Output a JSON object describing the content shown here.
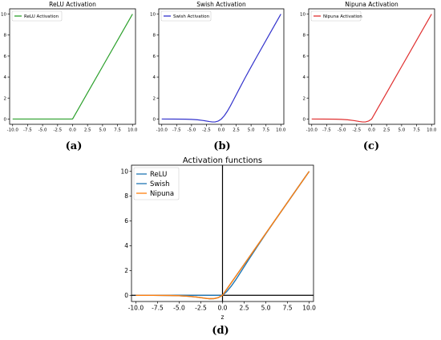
{
  "captions": [
    "(a)",
    "(b)",
    "(c)",
    "(d)"
  ],
  "colors": {
    "relu": "#2ca02c",
    "swish": "#3333cc",
    "nipuna": "#e03030",
    "relu_d": "#1f77b4",
    "swish_d": "#1f77b4",
    "nipuna_d": "#ff7f0e",
    "axis_line": "#000000"
  },
  "chart_data": [
    {
      "type": "line",
      "title": "ReLU Activation",
      "xlim": [
        -10.5,
        10.5
      ],
      "ylim": [
        -0.5,
        10.5
      ],
      "x_ticks": [
        -10.0,
        -7.5,
        -5.0,
        -2.5,
        0.0,
        2.5,
        5.0,
        7.5,
        10.0
      ],
      "x_tick_labels": [
        "-10.0",
        "-7.5",
        "-5.0",
        "-2.5",
        "0.0",
        "2.5",
        "5.0",
        "7.5",
        "10.0"
      ],
      "y_ticks": [
        0,
        2,
        4,
        6,
        8,
        10
      ],
      "y_tick_labels": [
        "0",
        "2",
        "4",
        "6",
        "8",
        "10"
      ],
      "legend_position": "upper-left",
      "grid": false,
      "series": [
        {
          "name": "ReLU Activation",
          "color_key": "relu",
          "x": [
            -10,
            -5,
            0,
            2.5,
            5,
            7.5,
            10
          ],
          "y": [
            0,
            0,
            0,
            2.5,
            5,
            7.5,
            10
          ]
        }
      ]
    },
    {
      "type": "line",
      "title": "Swish Activation",
      "xlim": [
        -10.5,
        10.5
      ],
      "ylim": [
        -0.5,
        10.5
      ],
      "x_ticks": [
        -10.0,
        -7.5,
        -5.0,
        -2.5,
        0.0,
        2.5,
        5.0,
        7.5,
        10.0
      ],
      "x_tick_labels": [
        "-10.0",
        "-7.5",
        "-5.0",
        "-2.5",
        "0.0",
        "2.5",
        "5.0",
        "7.5",
        "10.0"
      ],
      "y_ticks": [
        0,
        2,
        4,
        6,
        8,
        10
      ],
      "y_tick_labels": [
        "0",
        "2",
        "4",
        "6",
        "8",
        "10"
      ],
      "legend_position": "upper-left",
      "grid": false,
      "series": [
        {
          "name": "Swish Activation",
          "color_key": "swish",
          "x": [
            -10,
            -8,
            -6,
            -5,
            -4,
            -3,
            -2,
            -1.5,
            -1,
            -0.5,
            0,
            0.5,
            1,
            1.5,
            2,
            3,
            4,
            5,
            6,
            8,
            10
          ],
          "y": [
            0.0,
            -0.003,
            -0.015,
            -0.033,
            -0.072,
            -0.142,
            -0.238,
            -0.274,
            -0.269,
            -0.189,
            0.0,
            0.311,
            0.731,
            1.226,
            1.762,
            2.858,
            3.928,
            4.967,
            5.985,
            7.997,
            10.0
          ]
        }
      ]
    },
    {
      "type": "line",
      "title": "Nipuna Activation",
      "xlim": [
        -10.5,
        10.5
      ],
      "ylim": [
        -0.5,
        10.5
      ],
      "x_ticks": [
        -10.0,
        -7.5,
        -5.0,
        -2.5,
        0.0,
        2.5,
        5.0,
        7.5,
        10.0
      ],
      "x_tick_labels": [
        "-10.0",
        "-7.5",
        "-5.0",
        "-2.5",
        "0.0",
        "2.5",
        "5.0",
        "7.5",
        "10.0"
      ],
      "y_ticks": [
        0,
        2,
        4,
        6,
        8,
        10
      ],
      "y_tick_labels": [
        "0",
        "2",
        "4",
        "6",
        "8",
        "10"
      ],
      "legend_position": "upper-left",
      "grid": false,
      "series": [
        {
          "name": "Nipuna Activation",
          "color_key": "nipuna",
          "x": [
            -10,
            -8,
            -6,
            -5,
            -4,
            -3,
            -2,
            -1.5,
            -1,
            -0.5,
            0,
            0.5,
            1,
            2,
            3,
            4,
            5,
            6,
            8,
            10
          ],
          "y": [
            0.0,
            -0.003,
            -0.015,
            -0.033,
            -0.072,
            -0.142,
            -0.238,
            -0.274,
            -0.269,
            -0.189,
            0.0,
            0.5,
            1,
            2,
            3,
            4,
            5,
            6,
            8,
            10
          ]
        }
      ]
    },
    {
      "type": "line",
      "title": "Activation functions",
      "xlabel": "z",
      "xlim": [
        -10.5,
        10.5
      ],
      "ylim": [
        -0.5,
        10.5
      ],
      "x_ticks": [
        -10.0,
        -7.5,
        -5.0,
        -2.5,
        0.0,
        2.5,
        5.0,
        7.5,
        10.0
      ],
      "x_tick_labels": [
        "-10.0",
        "-7.5",
        "-5.0",
        "-2.5",
        "0.0",
        "2.5",
        "5.0",
        "7.5",
        "10.0"
      ],
      "y_ticks": [
        0,
        2,
        4,
        6,
        8,
        10
      ],
      "y_tick_labels": [
        "0",
        "2",
        "4",
        "6",
        "8",
        "10"
      ],
      "legend_position": "upper-left",
      "grid": false,
      "axis_lines": {
        "x0": true,
        "y0": true
      },
      "series": [
        {
          "name": "ReLU",
          "color_key": "relu_d",
          "x": [
            -10,
            -5,
            0,
            2.5,
            5,
            7.5,
            10
          ],
          "y": [
            0,
            0,
            0,
            2.5,
            5,
            7.5,
            10
          ]
        },
        {
          "name": "Swish",
          "color_key": "swish_d",
          "x": [
            -10,
            -8,
            -6,
            -5,
            -4,
            -3,
            -2,
            -1.5,
            -1,
            -0.5,
            0,
            0.5,
            1,
            1.5,
            2,
            3,
            4,
            5,
            6,
            8,
            10
          ],
          "y": [
            0.0,
            -0.003,
            -0.015,
            -0.033,
            -0.072,
            -0.142,
            -0.238,
            -0.274,
            -0.269,
            -0.189,
            0.0,
            0.311,
            0.731,
            1.226,
            1.762,
            2.858,
            3.928,
            4.967,
            5.985,
            7.997,
            10.0
          ]
        },
        {
          "name": "Nipuna",
          "color_key": "nipuna_d",
          "x": [
            -10,
            -8,
            -6,
            -5,
            -4,
            -3,
            -2,
            -1.5,
            -1,
            -0.5,
            0,
            0.5,
            1,
            2,
            3,
            4,
            5,
            6,
            8,
            10
          ],
          "y": [
            0.0,
            -0.003,
            -0.015,
            -0.033,
            -0.072,
            -0.142,
            -0.238,
            -0.274,
            -0.269,
            -0.189,
            0.0,
            0.5,
            1,
            2,
            3,
            4,
            5,
            6,
            8,
            10
          ]
        }
      ]
    }
  ]
}
